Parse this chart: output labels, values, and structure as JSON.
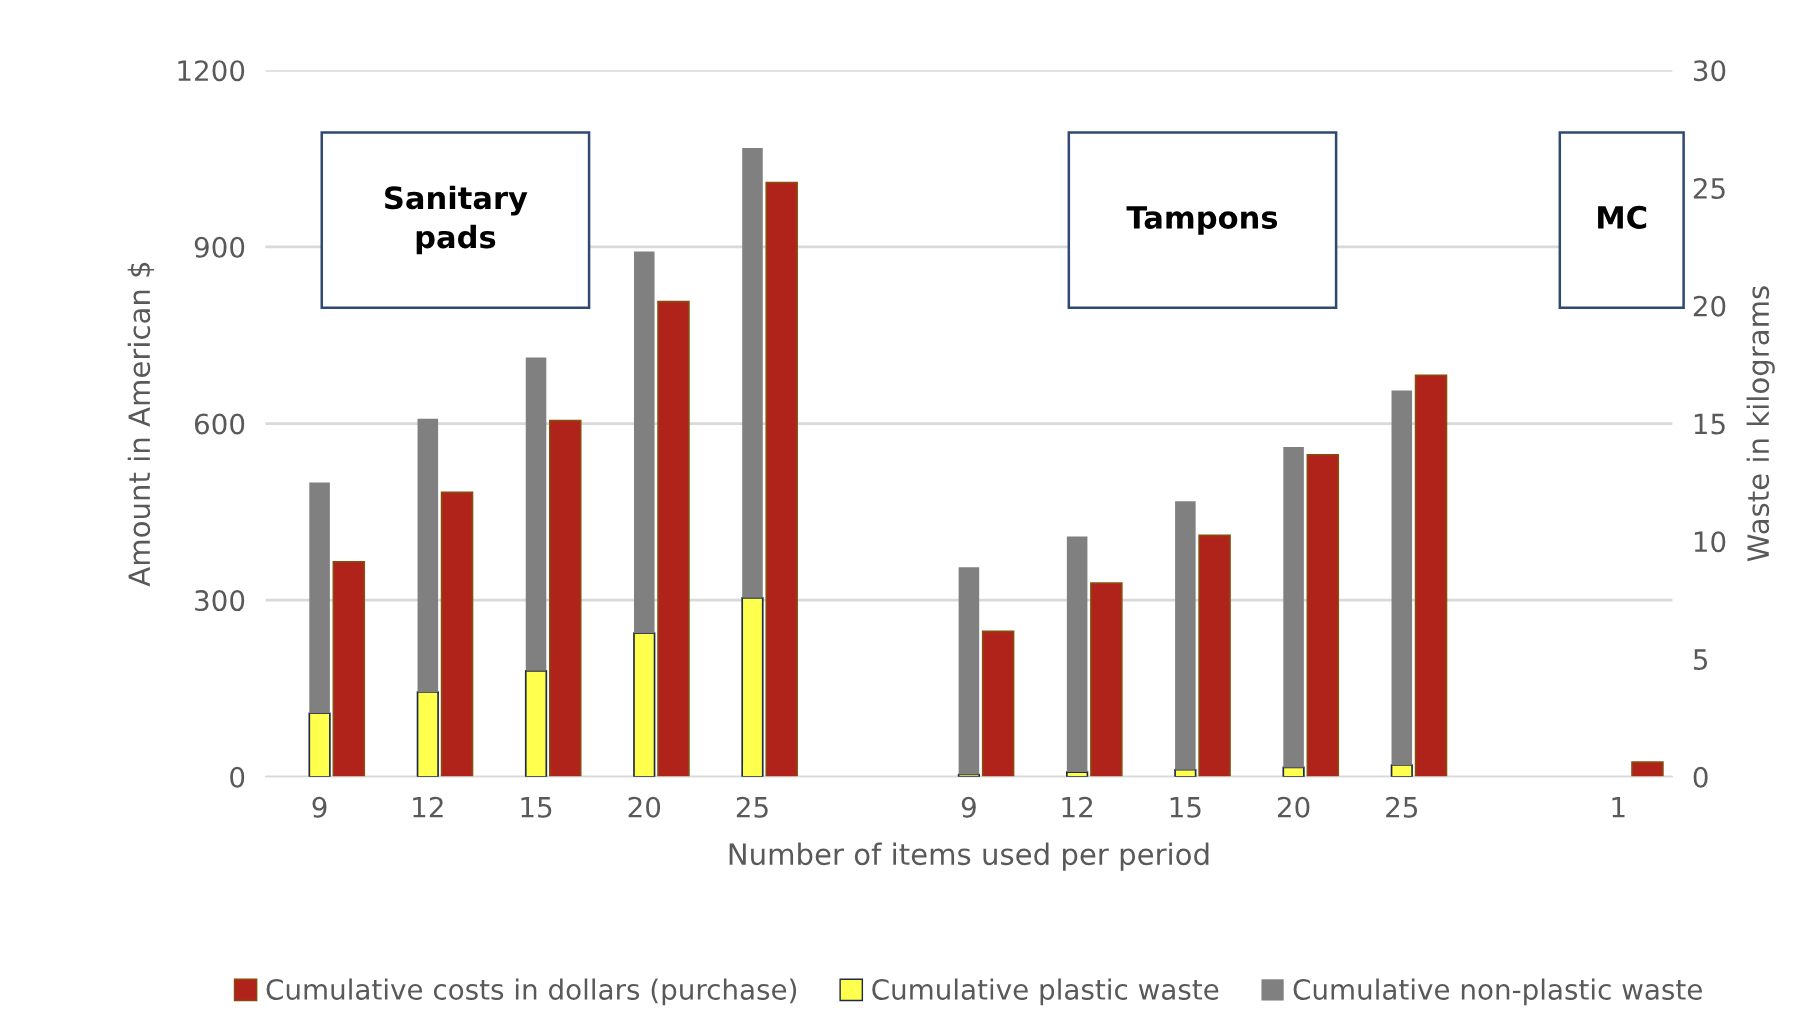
{
  "chart_data": {
    "type": "bar",
    "categories": [
      "9",
      "12",
      "15",
      "20",
      "25",
      null,
      "9",
      "12",
      "15",
      "20",
      "25",
      null,
      "1"
    ],
    "series": [
      {
        "name": "Cumulative costs in dollars (purchase)",
        "color": "#b0231a",
        "axis": "y",
        "values": [
          365,
          483,
          605,
          807,
          1009,
          null,
          247,
          329,
          410,
          547,
          682,
          null,
          25
        ]
      },
      {
        "name": "Cumulative plastic waste",
        "color": "#ffff4d",
        "axis": "y2",
        "values": [
          2.7,
          3.6,
          4.5,
          6.1,
          7.6,
          null,
          0.1,
          0.2,
          0.3,
          0.4,
          0.5,
          null,
          0
        ]
      },
      {
        "name": "Cumulative non-plastic waste",
        "color": "#808080",
        "axis": "y2",
        "values": [
          9.8,
          11.6,
          13.3,
          16.2,
          19.1,
          null,
          8.8,
          10.0,
          11.4,
          13.6,
          15.9,
          null,
          null
        ]
      }
    ],
    "stacked": true,
    "xlabel": "Number of items used per period",
    "ylabel": "Amount in American $",
    "y2label": "Waste in kilograms",
    "ylim": [
      0,
      1200
    ],
    "yticks": [
      0,
      300,
      600,
      900,
      1200
    ],
    "y2lim": [
      0,
      30
    ],
    "y2ticks": [
      0,
      5,
      10,
      15,
      20,
      25,
      30
    ],
    "annotations": [
      "Sanitary\npads",
      "Tampons",
      "MC"
    ],
    "grid": "y",
    "legend": "bottom"
  }
}
